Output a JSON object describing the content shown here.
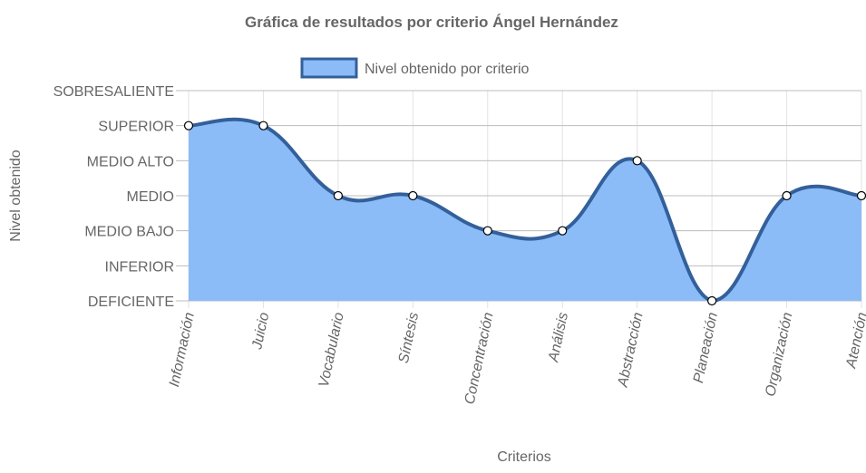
{
  "chart_data": {
    "type": "area",
    "title": "Gráfica de resultados por criterio Ángel Hernández",
    "xlabel": "Criterios",
    "ylabel": "Nivel obtenido",
    "categories": [
      "Información",
      "Juicio",
      "Vocabulario",
      "Síntesis",
      "Concentración",
      "Análisis",
      "Abstracción",
      "Planeación",
      "Organización",
      "Atención"
    ],
    "y_levels": [
      "DEFICIENTE",
      "INFERIOR",
      "MEDIO BAJO",
      "MEDIO",
      "MEDIO ALTO",
      "SUPERIOR",
      "SOBRESALIENTE"
    ],
    "ylim": [
      0,
      6
    ],
    "grid": true,
    "legend_position": "top-center",
    "series": [
      {
        "name": "Nivel obtenido por criterio",
        "values": [
          5,
          5,
          3,
          3,
          2,
          2,
          4,
          0,
          3,
          3
        ],
        "fill_color": "#8bbcf8",
        "line_color": "#33609a",
        "point_color": "#ffffff"
      }
    ]
  }
}
